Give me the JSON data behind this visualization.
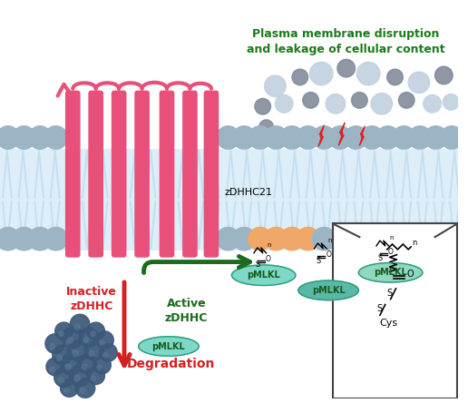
{
  "title": "Plasma membrane disruption\nand leakage of cellular content",
  "title_color": "#1a7a1a",
  "zdhhc21_label": "zDHHC21",
  "inactive_label": "Inactive\nzDHHC",
  "active_label": "Active\nzDHHC",
  "degradation_label": "Degradation",
  "pmlkl_label": "pMLKL",
  "membrane_gray": "#9cb5c5",
  "membrane_orange": "#f0a868",
  "lipid_blue": "#c5dff0",
  "protein_pink": "#e8507a",
  "dark_blue_cluster": "#3a5878",
  "dark_green": "#1a6b1a",
  "red_arrow": "#d42020",
  "teal_light": "#7dcfc0",
  "teal_mid": "#5ab8a8",
  "teal_dark": "#40a090",
  "bg": "#ffffff",
  "disruption_light": "#c0d0e0",
  "disruption_dark": "#808898"
}
